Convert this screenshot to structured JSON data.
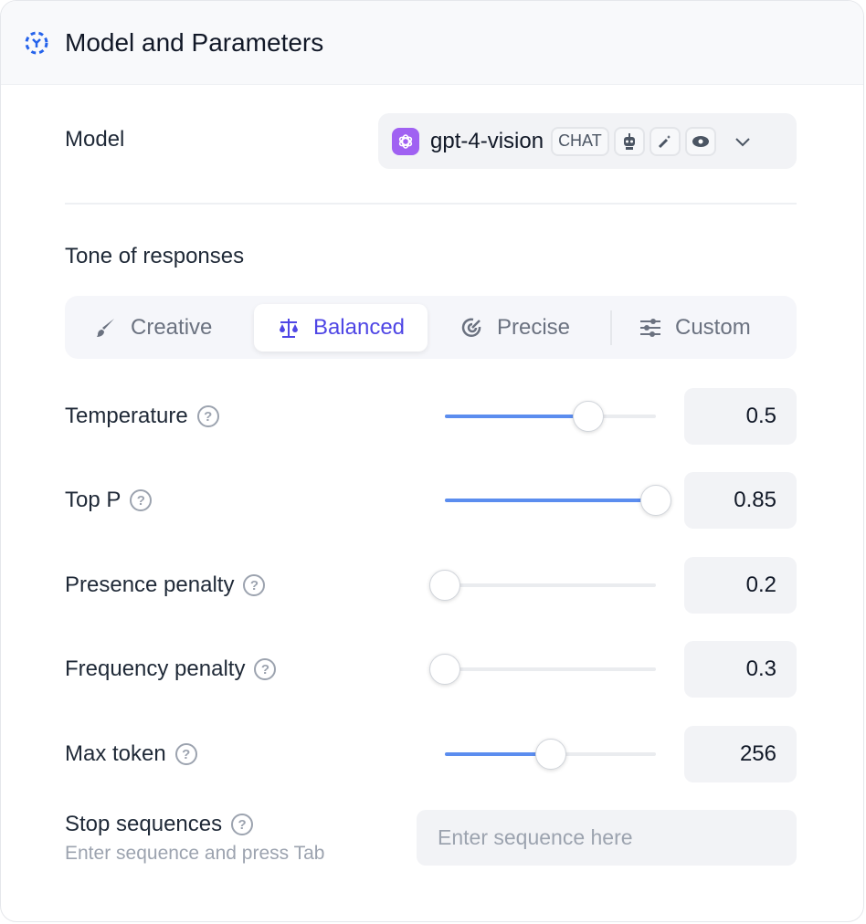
{
  "header": {
    "title": "Model and Parameters",
    "icon": "cube-dashed-icon"
  },
  "model": {
    "label": "Model",
    "name": "gpt-4-vision",
    "badge": "CHAT",
    "brand_color": "#a061f2"
  },
  "tone": {
    "label": "Tone of responses",
    "tabs": [
      {
        "label": "Creative",
        "icon": "brush-icon"
      },
      {
        "label": "Balanced",
        "icon": "scale-icon",
        "active": true
      },
      {
        "label": "Precise",
        "icon": "target-icon"
      },
      {
        "label": "Custom",
        "icon": "sliders-icon"
      }
    ]
  },
  "params": [
    {
      "label": "Temperature",
      "value": "0.5",
      "level_percent": 68
    },
    {
      "label": "Top P",
      "value": "0.85",
      "level_percent": 100
    },
    {
      "label": "Presence penalty",
      "value": "0.2",
      "level_percent": 0
    },
    {
      "label": "Frequency penalty",
      "value": "0.3",
      "level_percent": 0
    },
    {
      "label": "Max token",
      "value": "256",
      "level_percent": 50
    }
  ],
  "stop": {
    "label": "Stop sequences",
    "hint": "Enter sequence and press Tab",
    "placeholder": "Enter sequence here"
  },
  "colors": {
    "accent": "#4f46e5",
    "slider": "#5b8def"
  }
}
